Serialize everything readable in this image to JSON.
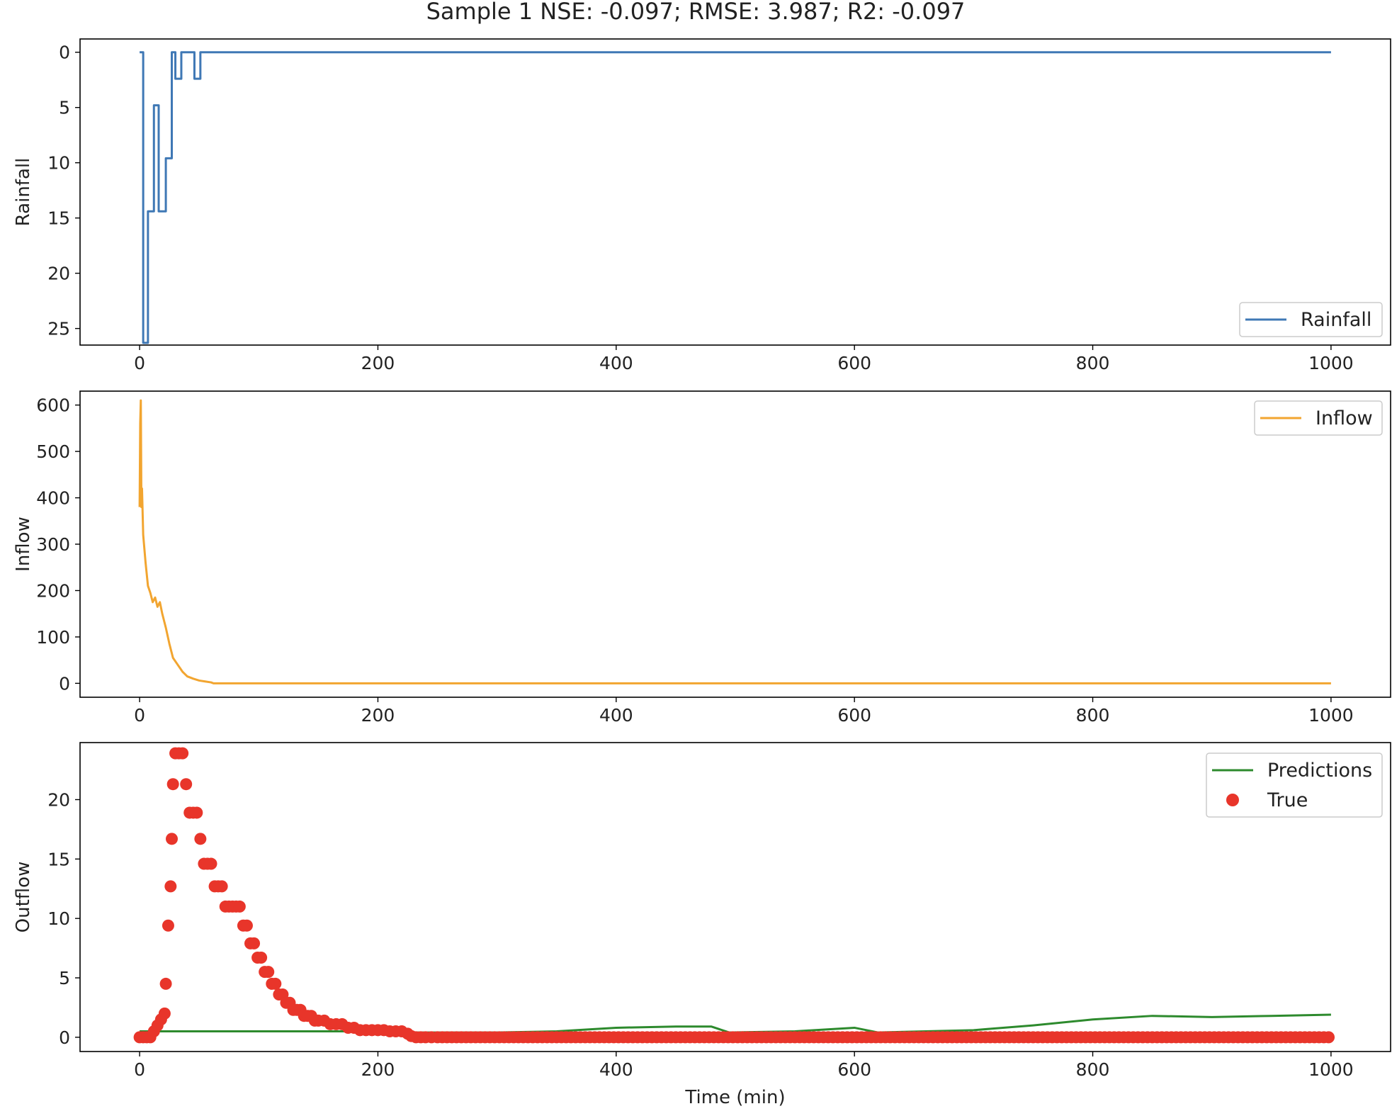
{
  "figure": {
    "title": "Sample 1 NSE: -0.097; RMSE: 3.987; R2: -0.097"
  },
  "chart_data": [
    {
      "type": "line",
      "ylabel": "Rainfall",
      "xlabel": "",
      "xlim": [
        -50,
        1050
      ],
      "ylim": [
        26.5,
        -1.2
      ],
      "y_inverted": true,
      "x_ticks": [
        0,
        200,
        400,
        600,
        800,
        1000
      ],
      "y_ticks": [
        0,
        5,
        10,
        15,
        20,
        25
      ],
      "legend_position": "lower right",
      "series": [
        {
          "name": "Rainfall",
          "color": "#3f78b5",
          "style": "step",
          "x": [
            0,
            2,
            3,
            6,
            7,
            11,
            12,
            15,
            16,
            21,
            22,
            26,
            27,
            29,
            30,
            34,
            35,
            37,
            38,
            45,
            46,
            50,
            51,
            1000
          ],
          "y": [
            0,
            0,
            26.3,
            26.3,
            14.4,
            14.4,
            4.8,
            4.8,
            14.4,
            14.4,
            9.6,
            9.6,
            0,
            0,
            2.4,
            2.4,
            0,
            0,
            0,
            0,
            2.4,
            2.4,
            0,
            0
          ]
        }
      ]
    },
    {
      "type": "line",
      "ylabel": "Inflow",
      "xlabel": "",
      "xlim": [
        -50,
        1050
      ],
      "ylim": [
        -30,
        630
      ],
      "x_ticks": [
        0,
        200,
        400,
        600,
        800,
        1000
      ],
      "y_ticks": [
        0,
        100,
        200,
        300,
        400,
        500,
        600
      ],
      "legend_position": "upper right",
      "series": [
        {
          "name": "Inflow",
          "color": "#f2a530",
          "x": [
            0,
            0.5,
            1,
            1.5,
            2,
            3,
            5,
            7,
            9,
            11,
            13,
            15,
            17,
            19,
            22,
            25,
            28,
            32,
            36,
            40,
            45,
            50,
            55,
            60,
            62,
            70,
            100,
            200,
            400,
            600,
            800,
            1000
          ],
          "y": [
            380,
            560,
            610,
            380,
            420,
            320,
            260,
            210,
            195,
            175,
            185,
            165,
            175,
            150,
            120,
            85,
            55,
            40,
            25,
            15,
            10,
            6,
            4,
            2,
            0,
            0,
            0,
            0,
            0,
            0,
            0,
            0
          ]
        }
      ]
    },
    {
      "type": "scatter",
      "ylabel": "Outflow",
      "xlabel": "Time (min)",
      "xlim": [
        -50,
        1050
      ],
      "ylim": [
        -1.2,
        24.8
      ],
      "x_ticks": [
        0,
        200,
        400,
        600,
        800,
        1000
      ],
      "y_ticks": [
        0,
        5,
        10,
        15,
        20
      ],
      "legend_position": "upper right",
      "series": [
        {
          "name": "Predictions",
          "type": "line",
          "color": "#2d8a2d",
          "x": [
            0,
            100,
            200,
            230,
            300,
            350,
            400,
            450,
            480,
            495,
            550,
            600,
            620,
            700,
            750,
            800,
            850,
            900,
            950,
            1000
          ],
          "y": [
            0.5,
            0.5,
            0.5,
            0.4,
            0.4,
            0.5,
            0.8,
            0.9,
            0.9,
            0.4,
            0.5,
            0.8,
            0.4,
            0.6,
            1.0,
            1.5,
            1.8,
            1.7,
            1.8,
            1.9
          ]
        },
        {
          "name": "True",
          "type": "scatter",
          "color": "#e8352a",
          "points": [
            [
              0,
              0
            ],
            [
              3,
              0
            ],
            [
              6,
              0
            ],
            [
              9,
              0
            ],
            [
              12,
              0.5
            ],
            [
              15,
              1.0
            ],
            [
              18,
              1.5
            ],
            [
              21,
              2.0
            ],
            [
              22,
              4.5
            ],
            [
              24,
              9.4
            ],
            [
              26,
              12.7
            ],
            [
              27,
              16.7
            ],
            [
              28,
              21.3
            ],
            [
              30,
              23.9
            ],
            [
              33,
              23.9
            ],
            [
              36,
              23.9
            ],
            [
              39,
              21.3
            ],
            [
              42,
              18.9
            ],
            [
              45,
              18.9
            ],
            [
              48,
              18.9
            ],
            [
              51,
              16.7
            ],
            [
              54,
              14.6
            ],
            [
              57,
              14.6
            ],
            [
              60,
              14.6
            ],
            [
              63,
              12.7
            ],
            [
              66,
              12.7
            ],
            [
              69,
              12.7
            ],
            [
              72,
              11.0
            ],
            [
              75,
              11.0
            ],
            [
              78,
              11.0
            ],
            [
              81,
              11.0
            ],
            [
              84,
              11.0
            ],
            [
              87,
              9.4
            ],
            [
              90,
              9.4
            ],
            [
              93,
              7.9
            ],
            [
              96,
              7.9
            ],
            [
              99,
              6.7
            ],
            [
              102,
              6.7
            ],
            [
              105,
              5.5
            ],
            [
              108,
              5.5
            ],
            [
              111,
              4.5
            ],
            [
              114,
              4.5
            ],
            [
              117,
              3.6
            ],
            [
              120,
              3.6
            ],
            [
              123,
              2.9
            ],
            [
              126,
              2.9
            ],
            [
              129,
              2.3
            ],
            [
              132,
              2.3
            ],
            [
              135,
              2.3
            ],
            [
              138,
              1.8
            ],
            [
              141,
              1.8
            ],
            [
              144,
              1.8
            ],
            [
              147,
              1.4
            ],
            [
              150,
              1.4
            ],
            [
              155,
              1.4
            ],
            [
              160,
              1.1
            ],
            [
              165,
              1.1
            ],
            [
              170,
              1.1
            ],
            [
              175,
              0.8
            ],
            [
              180,
              0.8
            ],
            [
              185,
              0.6
            ],
            [
              190,
              0.6
            ],
            [
              195,
              0.6
            ],
            [
              200,
              0.6
            ],
            [
              205,
              0.6
            ],
            [
              210,
              0.5
            ],
            [
              215,
              0.5
            ],
            [
              220,
              0.5
            ],
            [
              225,
              0.3
            ],
            [
              228,
              0.1
            ],
            [
              232,
              0
            ],
            [
              236,
              0
            ],
            [
              240,
              0
            ],
            [
              245,
              0
            ],
            [
              250,
              0
            ]
          ],
          "tail_x_start": 254,
          "tail_x_end": 1000,
          "tail_x_step": 4,
          "tail_y": 0
        }
      ]
    }
  ]
}
